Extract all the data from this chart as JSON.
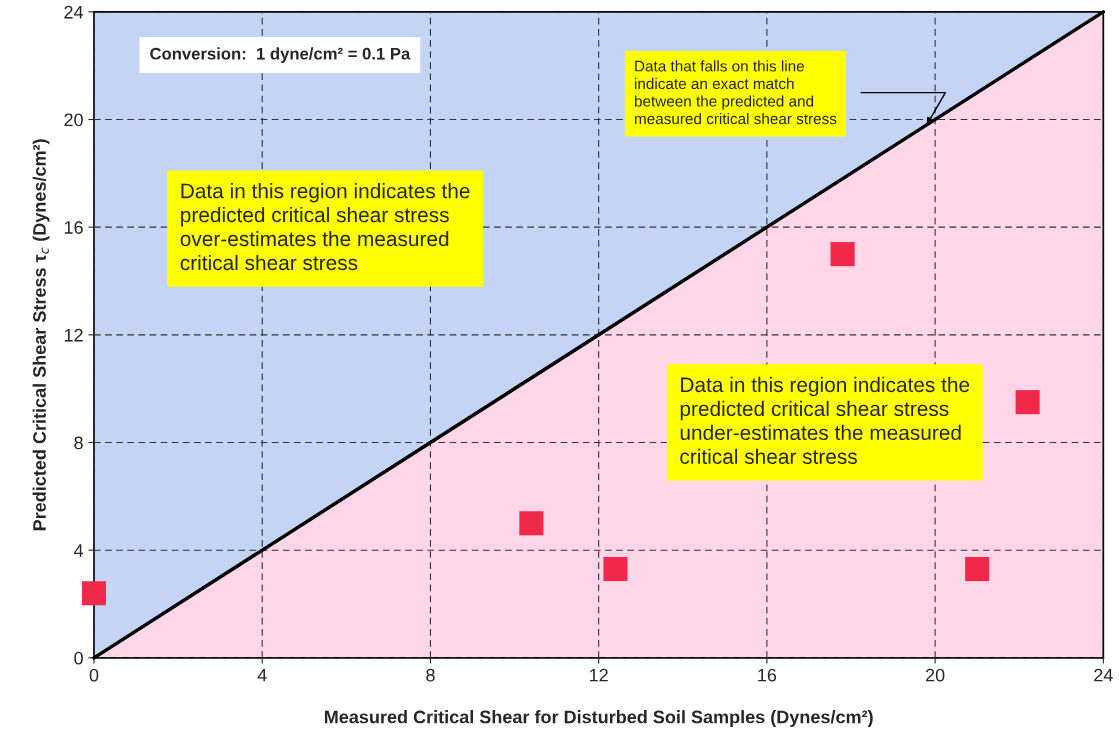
{
  "chart_data": {
    "type": "scatter",
    "xlabel": "Measured Critical Shear for Disturbed Soil Samples (Dynes/cm²)",
    "ylabel": "Predicted Critical Shear Stress τ$_{c}$ (Dynes/cm²)",
    "series": [
      {
        "type": "line",
        "color": "#000000",
        "x": [
          0,
          24
        ],
        "values": [
          0,
          24
        ],
        "marker": "none",
        "line_style": "solid"
      },
      {
        "color": "#f0284a",
        "marker": "square",
        "x": [
          0,
          10.4,
          12.4,
          17.8,
          21,
          22.2
        ],
        "values": [
          2.4,
          5,
          3.3,
          15,
          3.3,
          9.5
        ]
      }
    ],
    "xlim": [
      0,
      24
    ],
    "ylim": [
      0,
      24
    ],
    "xticks": [
      0,
      4,
      8,
      12,
      16,
      20,
      24
    ],
    "yticks": [
      0,
      4,
      8,
      12,
      16,
      20,
      24
    ],
    "grid": true,
    "legend": false,
    "annotations": [
      "Conversion:  1 dyne/cm² = 0.1 Pa",
      "Data that falls on this line\nindicate an exact match\nbetween the predicted and\nmeasured critical shear stress",
      "Data in this region indicates the\npredicted critical shear stress\nover-estimates the measured\ncritical shear stress",
      "Data in this region indicates the\npredicted critical shear stress\nunder-estimates the measured\ncritical shear stress"
    ]
  }
}
